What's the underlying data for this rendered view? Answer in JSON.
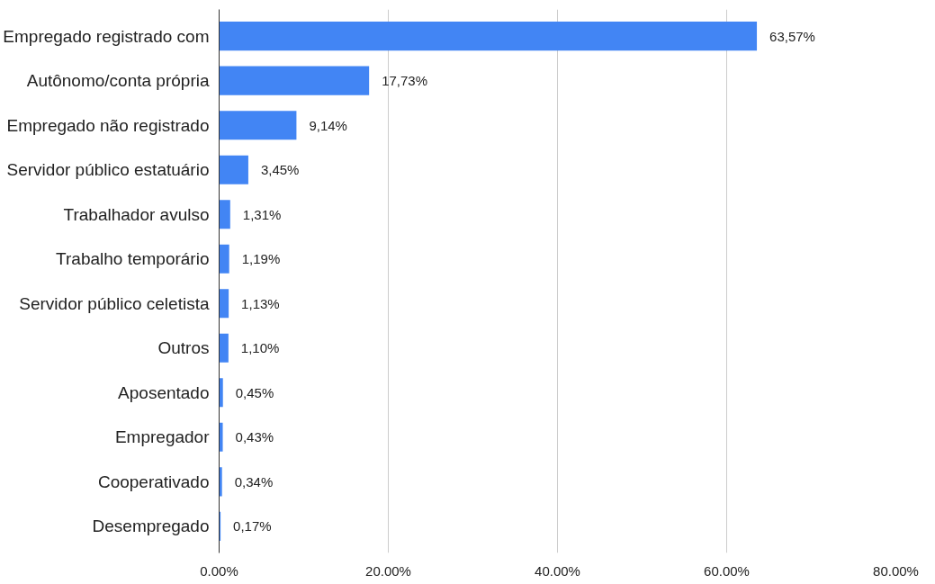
{
  "chart_data": {
    "type": "bar",
    "orientation": "horizontal",
    "categories": [
      "Empregado registrado com",
      "Autônomo/conta própria",
      "Empregado não registrado",
      "Servidor público estatuário",
      "Trabalhador avulso",
      "Trabalho temporário",
      "Servidor público celetista",
      "Outros",
      "Aposentado",
      "Empregador",
      "Cooperativado",
      "Desempregado"
    ],
    "values": [
      63.57,
      17.73,
      9.14,
      3.45,
      1.31,
      1.19,
      1.13,
      1.1,
      0.45,
      0.43,
      0.34,
      0.17
    ],
    "value_labels": [
      "63,57%",
      "17,73%",
      "9,14%",
      "3,45%",
      "1,31%",
      "1,19%",
      "1,13%",
      "1,10%",
      "0,45%",
      "0,43%",
      "0,34%",
      "0,17%"
    ],
    "color": "#4285f4",
    "xlim": [
      0,
      80
    ],
    "xticks": [
      {
        "value": 0,
        "label": "0.00%"
      },
      {
        "value": 20,
        "label": "20.00%"
      },
      {
        "value": 40,
        "label": "40.00%"
      },
      {
        "value": 60,
        "label": "60.00%"
      },
      {
        "value": 80,
        "label": "80.00%"
      }
    ],
    "grid": "x"
  }
}
